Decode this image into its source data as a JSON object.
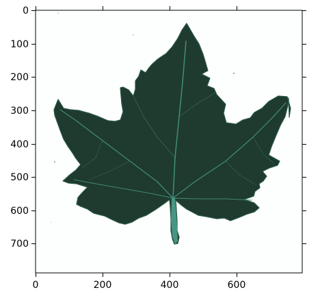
{
  "figure": {
    "image_subject": "leaf-scan",
    "colors": {
      "leaf": "#1f3a2e",
      "leaf_edge": "#2a5a47",
      "veins": "#3f8a78",
      "stem": "#4a9a88",
      "background": "#fdfefe",
      "axis": "#000000"
    },
    "x_axis": {
      "ticks": [
        "0",
        "200",
        "400",
        "600"
      ]
    },
    "y_axis": {
      "ticks": [
        "0",
        "100",
        "200",
        "300",
        "400",
        "500",
        "600",
        "700"
      ]
    }
  }
}
